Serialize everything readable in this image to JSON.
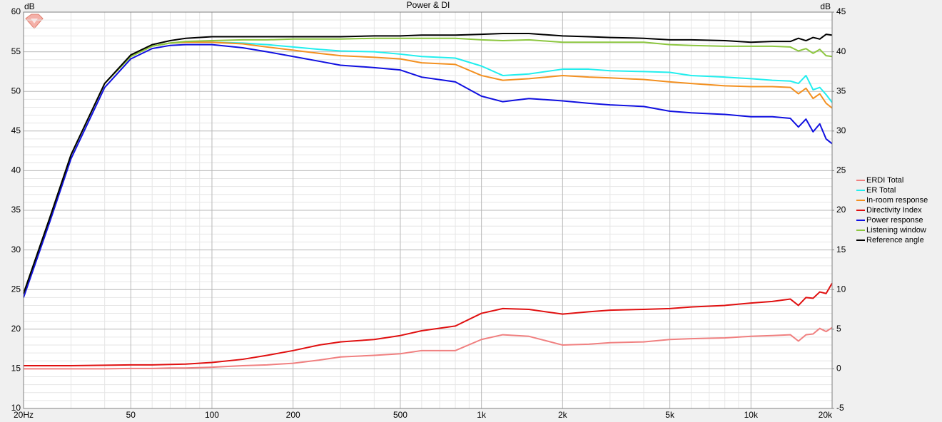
{
  "chart_data": {
    "type": "line",
    "title": "Power & DI",
    "ylabel": "dB",
    "y2label": "dB",
    "log_x": true,
    "grid": true,
    "legend": "right",
    "x": [
      20,
      25,
      30,
      40,
      50,
      60,
      70,
      80,
      100,
      130,
      160,
      200,
      250,
      300,
      400,
      500,
      600,
      800,
      1000,
      1200,
      1500,
      2000,
      2500,
      3000,
      4000,
      5000,
      6000,
      8000,
      10000,
      12000,
      14000,
      15000,
      16000,
      17000,
      18000,
      19000,
      20000
    ],
    "xlim": [
      20,
      20000
    ],
    "xticks": [
      {
        "value": 20,
        "label": "20Hz"
      },
      50,
      100,
      200,
      500,
      {
        "value": 1000,
        "label": "1k"
      },
      {
        "value": 2000,
        "label": "2k"
      },
      {
        "value": 5000,
        "label": "5k"
      },
      {
        "value": 10000,
        "label": "10k"
      },
      {
        "value": 20000,
        "label": "20k"
      }
    ],
    "xminorticks": [
      30,
      40,
      60,
      70,
      80,
      90,
      300,
      400,
      600,
      700,
      800,
      900,
      3000,
      4000,
      6000,
      7000,
      8000,
      9000
    ],
    "ylim": [
      10,
      60
    ],
    "yticks": [
      10,
      15,
      20,
      25,
      30,
      35,
      40,
      45,
      50,
      55,
      60
    ],
    "yminorticks": [
      11,
      12,
      13,
      14,
      16,
      17,
      18,
      19,
      21,
      22,
      23,
      24,
      26,
      27,
      28,
      29,
      31,
      32,
      33,
      34,
      36,
      37,
      38,
      39,
      41,
      42,
      43,
      44,
      46,
      47,
      48,
      49,
      51,
      52,
      53,
      54,
      56,
      57,
      58,
      59
    ],
    "y2lim": [
      -5,
      45
    ],
    "y2ticks": [
      -5,
      0,
      5,
      10,
      15,
      20,
      25,
      30,
      35,
      40,
      45
    ],
    "series": [
      {
        "name": "ERDI Total",
        "color": "#f08080",
        "axis": "y2",
        "values": [
          0.0,
          0.0,
          0.0,
          0.0,
          0.05,
          0.05,
          0.1,
          0.1,
          0.2,
          0.4,
          0.5,
          0.7,
          1.1,
          1.5,
          1.7,
          1.9,
          2.3,
          2.3,
          3.7,
          4.3,
          4.1,
          3.0,
          3.1,
          3.3,
          3.4,
          3.7,
          3.8,
          3.9,
          4.1,
          4.2,
          4.3,
          3.5,
          4.3,
          4.4,
          5.1,
          4.7,
          5.2
        ]
      },
      {
        "name": "ER Total",
        "color": "#22eeee",
        "values": [
          24.5,
          34,
          42,
          51,
          54.4,
          55.7,
          56.1,
          56.2,
          56.2,
          56.1,
          55.9,
          55.6,
          55.3,
          55.1,
          55.0,
          54.7,
          54.4,
          54.2,
          53.2,
          52.0,
          52.2,
          52.8,
          52.8,
          52.6,
          52.5,
          52.4,
          52.0,
          51.8,
          51.6,
          51.4,
          51.3,
          51.0,
          52.0,
          50.2,
          50.5,
          49.6,
          48.6
        ]
      },
      {
        "name": "In-room response",
        "color": "#f39020",
        "values": [
          24.5,
          34,
          42,
          51,
          54.4,
          55.7,
          56.1,
          56.2,
          56.2,
          56.0,
          55.6,
          55.2,
          54.8,
          54.5,
          54.3,
          54.1,
          53.6,
          53.4,
          52.0,
          51.4,
          51.6,
          52.0,
          51.8,
          51.7,
          51.5,
          51.2,
          51.0,
          50.7,
          50.6,
          50.6,
          50.5,
          49.7,
          50.4,
          49.1,
          49.7,
          48.5,
          47.9
        ]
      },
      {
        "name": "Directivity Index",
        "color": "#e01010",
        "axis": "y2",
        "values": [
          0.4,
          0.4,
          0.4,
          0.45,
          0.5,
          0.5,
          0.55,
          0.6,
          0.8,
          1.2,
          1.7,
          2.3,
          3.0,
          3.4,
          3.7,
          4.2,
          4.8,
          5.4,
          7.0,
          7.6,
          7.5,
          6.9,
          7.2,
          7.4,
          7.5,
          7.6,
          7.8,
          8.0,
          8.3,
          8.5,
          8.8,
          8.0,
          9.0,
          8.9,
          9.7,
          9.5,
          10.8
        ]
      },
      {
        "name": "Power response",
        "color": "#1010e0",
        "values": [
          24,
          33.5,
          41.5,
          50.5,
          54.1,
          55.4,
          55.8,
          55.9,
          55.9,
          55.5,
          55.0,
          54.4,
          53.8,
          53.3,
          53.0,
          52.7,
          51.8,
          51.2,
          49.4,
          48.7,
          49.1,
          48.8,
          48.5,
          48.3,
          48.1,
          47.5,
          47.3,
          47.1,
          46.8,
          46.8,
          46.6,
          45.5,
          46.5,
          44.9,
          45.9,
          44.0,
          43.4
        ]
      },
      {
        "name": "Listening window",
        "color": "#8cc63f",
        "values": [
          24.5,
          34,
          42,
          51,
          54.4,
          55.7,
          56.1,
          56.3,
          56.4,
          56.5,
          56.5,
          56.6,
          56.6,
          56.6,
          56.7,
          56.7,
          56.7,
          56.7,
          56.5,
          56.4,
          56.5,
          56.2,
          56.2,
          56.2,
          56.2,
          55.9,
          55.8,
          55.7,
          55.7,
          55.7,
          55.6,
          55.1,
          55.4,
          54.8,
          55.3,
          54.5,
          54.4
        ]
      },
      {
        "name": "Reference angle",
        "color": "#000000",
        "values": [
          24.5,
          34,
          42,
          51,
          54.6,
          55.9,
          56.4,
          56.7,
          56.9,
          56.9,
          56.9,
          56.9,
          56.9,
          56.9,
          57.0,
          57.0,
          57.1,
          57.1,
          57.2,
          57.3,
          57.3,
          57.0,
          56.9,
          56.8,
          56.7,
          56.5,
          56.5,
          56.4,
          56.2,
          56.3,
          56.3,
          56.7,
          56.4,
          56.8,
          56.6,
          57.2,
          57.1
        ]
      }
    ]
  }
}
